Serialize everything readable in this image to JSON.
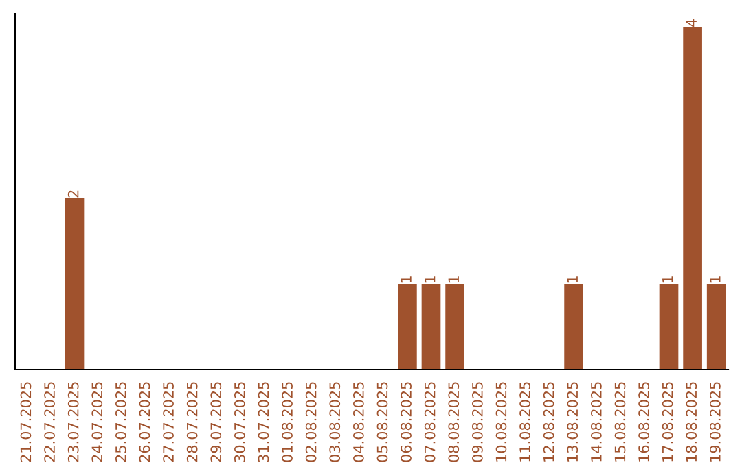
{
  "chart_data": {
    "type": "bar",
    "categories": [
      "21.07.2025",
      "22.07.2025",
      "23.07.2025",
      "24.07.2025",
      "25.07.2025",
      "26.07.2025",
      "27.07.2025",
      "28.07.2025",
      "29.07.2025",
      "30.07.2025",
      "31.07.2025",
      "01.08.2025",
      "02.08.2025",
      "03.08.2025",
      "04.08.2025",
      "05.08.2025",
      "06.08.2025",
      "07.08.2025",
      "08.08.2025",
      "09.08.2025",
      "10.08.2025",
      "11.08.2025",
      "12.08.2025",
      "13.08.2025",
      "14.08.2025",
      "15.08.2025",
      "16.08.2025",
      "17.08.2025",
      "18.08.2025",
      "19.08.2025"
    ],
    "values": [
      0,
      0,
      2,
      0,
      0,
      0,
      0,
      0,
      0,
      0,
      0,
      0,
      0,
      0,
      0,
      0,
      1,
      1,
      1,
      0,
      0,
      0,
      0,
      1,
      0,
      0,
      0,
      1,
      4,
      1
    ],
    "value_labels": [
      null,
      null,
      "2",
      null,
      null,
      null,
      null,
      null,
      null,
      null,
      null,
      null,
      null,
      null,
      null,
      null,
      "1",
      "1",
      "1",
      null,
      null,
      null,
      null,
      "1",
      null,
      null,
      null,
      "1",
      "4",
      "1"
    ],
    "color": "#a0522d",
    "tick_labels": "x",
    "grid": false,
    "legend": false
  }
}
